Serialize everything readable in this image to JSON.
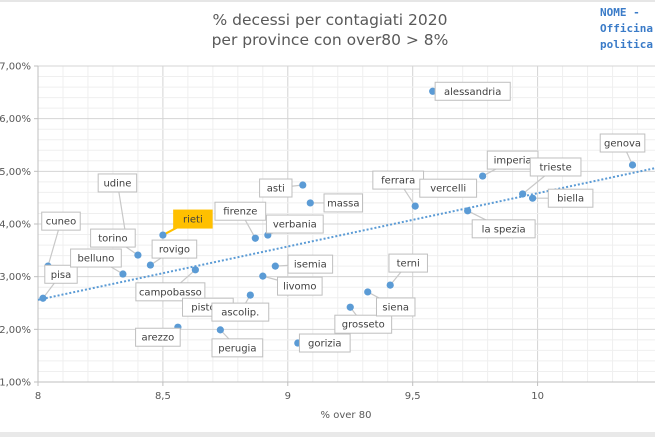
{
  "logo": {
    "line1": "NOME -",
    "line2": "Officina",
    "line3": "politica"
  },
  "chart_data": {
    "type": "scatter",
    "title": "% decessi per contagiati 2020",
    "subtitle": "per province con over80 > 8%",
    "xlabel": "% over 80",
    "ylabel": "",
    "xlim": [
      8,
      10.47
    ],
    "ylim": [
      1,
      7
    ],
    "x_ticks": [
      8,
      8.5,
      9,
      9.5,
      10
    ],
    "x_tick_labels": [
      "8",
      "8,5",
      "9",
      "9,5",
      "10"
    ],
    "y_ticks": [
      1,
      2,
      3,
      4,
      5,
      6,
      7
    ],
    "y_tick_labels": [
      "1,00%",
      "2,00%",
      "3,00%",
      "4,00%",
      "5,00%",
      "6,00%",
      "7,00%"
    ],
    "grid": true,
    "point_color": "#5b9bd5",
    "highlight_color": "#ffc000",
    "trendline": {
      "type": "linear",
      "x": [
        8,
        10.47
      ],
      "y": [
        2.56,
        5.06
      ],
      "color": "#5b9bd5",
      "style": "dotted"
    },
    "points": [
      {
        "label": "pisa",
        "x": 8.02,
        "y": 2.59
      },
      {
        "label": "cuneo",
        "x": 8.04,
        "y": 3.2
      },
      {
        "label": "belluno",
        "x": 8.34,
        "y": 3.05
      },
      {
        "label": "udine",
        "x": 8.35,
        "y": 3.83
      },
      {
        "label": "torino",
        "x": 8.4,
        "y": 3.41
      },
      {
        "label": "rovigo",
        "x": 8.45,
        "y": 3.22
      },
      {
        "label": "rieti",
        "x": 8.5,
        "y": 3.79,
        "highlight": true
      },
      {
        "label": "campobasso",
        "x": 8.63,
        "y": 3.13
      },
      {
        "label": "pistoia",
        "x": 8.62,
        "y": 2.61
      },
      {
        "label": "arezzo",
        "x": 8.56,
        "y": 2.04
      },
      {
        "label": "perugia",
        "x": 8.73,
        "y": 1.99
      },
      {
        "label": "ascolip.",
        "x": 8.85,
        "y": 2.65
      },
      {
        "label": "firenze",
        "x": 8.87,
        "y": 3.73
      },
      {
        "label": "verbania",
        "x": 8.92,
        "y": 3.79
      },
      {
        "label": "asti",
        "x": 9.06,
        "y": 4.74
      },
      {
        "label": "massa",
        "x": 9.09,
        "y": 4.4
      },
      {
        "label": "isemia",
        "x": 8.95,
        "y": 3.2
      },
      {
        "label": "livomo",
        "x": 8.9,
        "y": 3.01
      },
      {
        "label": "gorizia",
        "x": 9.04,
        "y": 1.74
      },
      {
        "label": "grosseto",
        "x": 9.25,
        "y": 2.42
      },
      {
        "label": "siena",
        "x": 9.32,
        "y": 2.71
      },
      {
        "label": "terni",
        "x": 9.41,
        "y": 2.84
      },
      {
        "label": "ferrara",
        "x": 9.51,
        "y": 4.34
      },
      {
        "label": "vercelli",
        "x": 9.55,
        "y": 4.68
      },
      {
        "label": "alessandria",
        "x": 9.58,
        "y": 6.52
      },
      {
        "label": "imperia",
        "x": 9.78,
        "y": 4.91
      },
      {
        "label": "la spezia",
        "x": 9.72,
        "y": 4.25
      },
      {
        "label": "trieste",
        "x": 9.94,
        "y": 4.57
      },
      {
        "label": "biella",
        "x": 9.98,
        "y": 4.49
      },
      {
        "label": "genova",
        "x": 10.38,
        "y": 5.12
      }
    ]
  }
}
